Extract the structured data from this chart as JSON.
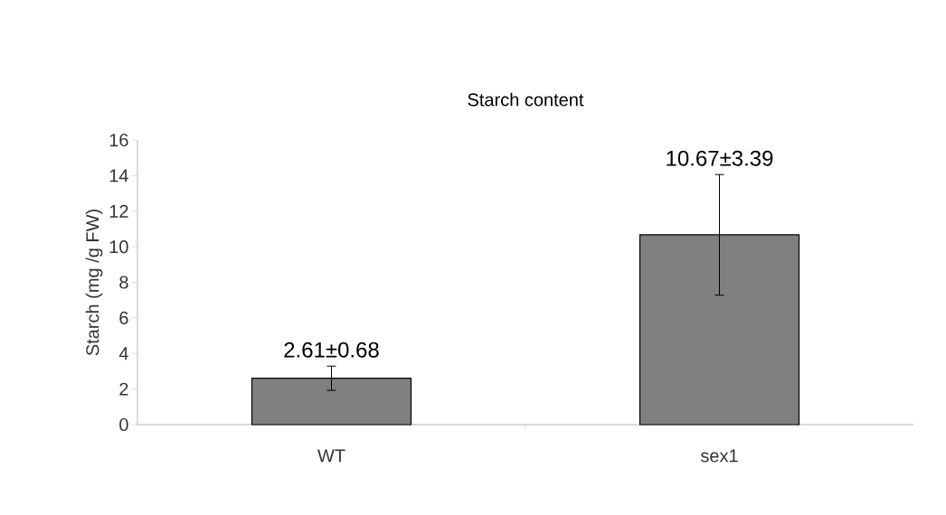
{
  "chart_data": {
    "type": "bar",
    "title": "Starch content",
    "ylabel": "Starch (mg /g FW)",
    "categories": [
      "WT",
      "sex1"
    ],
    "values": [
      2.61,
      10.67
    ],
    "errors": [
      0.68,
      3.39
    ],
    "value_labels": [
      "2.61±0.68",
      "10.67±3.39"
    ],
    "color": "#808080",
    "ylim": [
      0,
      16
    ],
    "yticks": [
      0,
      2,
      4,
      6,
      8,
      10,
      12,
      14,
      16
    ]
  }
}
